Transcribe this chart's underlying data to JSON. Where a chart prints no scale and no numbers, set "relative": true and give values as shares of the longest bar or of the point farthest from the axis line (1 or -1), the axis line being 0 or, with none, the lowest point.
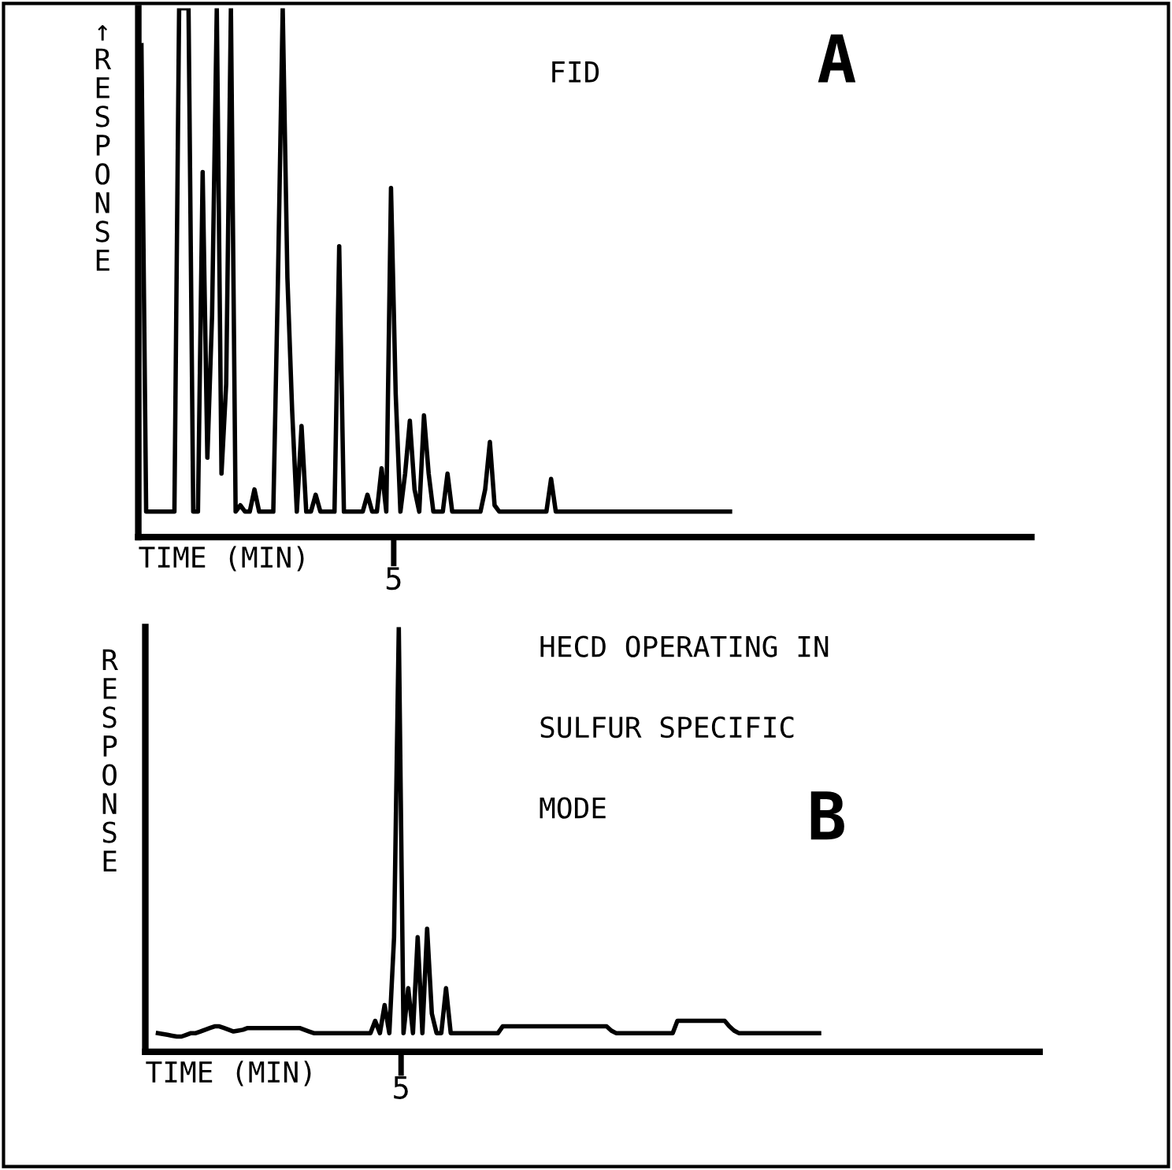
{
  "chart_data": [
    {
      "type": "line",
      "relative": true,
      "xlabel": "TIME (MIN)",
      "ylabel": "↑RESPONSE",
      "annotations": [
        "FID",
        "A",
        "5"
      ],
      "categories": [
        null,
        null,
        null,
        null,
        null,
        null,
        null,
        null,
        null,
        null,
        null,
        null,
        null,
        null,
        null,
        null,
        null,
        null,
        null,
        null,
        null,
        null,
        null,
        null,
        null,
        null,
        null,
        null,
        null,
        null,
        null,
        null,
        null,
        null,
        null,
        null,
        null,
        null,
        null,
        null,
        null,
        null,
        null,
        null,
        null,
        null,
        null,
        null,
        null,
        null,
        null,
        null,
        null,
        null,
        null,
        null,
        null,
        null,
        null,
        null,
        null,
        null,
        null,
        null,
        null,
        null,
        null,
        null,
        null,
        null,
        null,
        null,
        null,
        null,
        null,
        null,
        null,
        null,
        null,
        null,
        null,
        null,
        null,
        null,
        null,
        null,
        null,
        null,
        null,
        null,
        null,
        null,
        null,
        null,
        null,
        null,
        null,
        null,
        null,
        null,
        null,
        null,
        null,
        null,
        null,
        null,
        null,
        null,
        null,
        null,
        null,
        null,
        null,
        null,
        null,
        null,
        null,
        null,
        null,
        null,
        null,
        null,
        null,
        null,
        null,
        null
      ],
      "series": [
        {
          "color": "#000000",
          "values": [
            0.93,
            0.048,
            0.048,
            0.048,
            0.048,
            0.048,
            0.048,
            0.048,
            1,
            1,
            1,
            0.048,
            0.048,
            0.69,
            0.15,
            0.42,
            1,
            0.12,
            0.29,
            1,
            0.048,
            0.06,
            0.048,
            0.048,
            0.09,
            0.048,
            0.048,
            0.048,
            0.048,
            0.49,
            1,
            0.49,
            0.24,
            0.048,
            0.21,
            0.048,
            0.048,
            0.08,
            0.048,
            0.048,
            0.048,
            0.048,
            0.55,
            0.048,
            0.048,
            0.048,
            0.048,
            0.048,
            0.08,
            0.048,
            0.048,
            0.13,
            0.048,
            0.66,
            0.27,
            0.048,
            0.12,
            0.22,
            0.09,
            0.048,
            0.23,
            0.12,
            0.048,
            0.048,
            0.048,
            0.12,
            0.048,
            0.048,
            0.048,
            0.048,
            0.048,
            0.048,
            0.048,
            0.09,
            0.18,
            0.06,
            0.048,
            0.048,
            0.048,
            0.048,
            0.048,
            0.048,
            0.048,
            0.048,
            0.048,
            0.048,
            0.048,
            0.11,
            0.048,
            0.048,
            0.048,
            0.048,
            0.048,
            0.048,
            0.048,
            0.048,
            0.048,
            0.048,
            0.048,
            0.048,
            0.048,
            0.048,
            0.048,
            0.048,
            0.048,
            0.048,
            0.048,
            0.048,
            0.048,
            0.048,
            0.048,
            0.048,
            0.048,
            0.048,
            0.048,
            0.048,
            0.048,
            0.048,
            0.048,
            0.048,
            0.048,
            0.048,
            0.048,
            0.048,
            0.048,
            0.048
          ]
        }
      ]
    },
    {
      "type": "line",
      "relative": true,
      "xlabel": "TIME (MIN)",
      "ylabel": "RESPONSE",
      "annotations": [
        "HECD OPERATING IN",
        "SULFUR SPECIFIC",
        "MODE",
        "B",
        "5"
      ],
      "categories": [
        null,
        null,
        null,
        null,
        null,
        null,
        null,
        null,
        null,
        null,
        null,
        null,
        null,
        null,
        null,
        null,
        null,
        null,
        null,
        null,
        null,
        null,
        null,
        null,
        null,
        null,
        null,
        null,
        null,
        null,
        null,
        null,
        null,
        null,
        null,
        null,
        null,
        null,
        null,
        null,
        null,
        null,
        null,
        null,
        null,
        null,
        null,
        null,
        null,
        null,
        null,
        null,
        null,
        null,
        null,
        null,
        null,
        null,
        null,
        null,
        null,
        null,
        null,
        null,
        null,
        null,
        null,
        null,
        null,
        null,
        null,
        null,
        null,
        null,
        null,
        null,
        null,
        null,
        null,
        null,
        null,
        null,
        null,
        null,
        null,
        null,
        null,
        null,
        null,
        null,
        null,
        null,
        null,
        null,
        null,
        null,
        null,
        null,
        null,
        null,
        null,
        null,
        null,
        null,
        null,
        null,
        null,
        null,
        null,
        null,
        null,
        null,
        null,
        null,
        null,
        null,
        null,
        null,
        null,
        null,
        null,
        null,
        null,
        null,
        null,
        null,
        null,
        null,
        null,
        null,
        null,
        null,
        null,
        null,
        null,
        null,
        null,
        null,
        null,
        null,
        null
      ],
      "series": [
        {
          "color": "#000000",
          "values": [
            0.044,
            0.042,
            0.04,
            0.038,
            0.036,
            0.036,
            0.04,
            0.044,
            0.044,
            0.048,
            0.052,
            0.056,
            0.06,
            0.06,
            0.056,
            0.052,
            0.048,
            0.05,
            0.052,
            0.056,
            0.056,
            0.056,
            0.056,
            0.056,
            0.056,
            0.056,
            0.056,
            0.056,
            0.056,
            0.056,
            0.056,
            0.052,
            0.048,
            0.044,
            0.044,
            0.044,
            0.044,
            0.044,
            0.044,
            0.044,
            0.044,
            0.044,
            0.044,
            0.044,
            0.044,
            0.044,
            0.073,
            0.044,
            0.11,
            0.044,
            0.27,
            1,
            0.044,
            0.15,
            0.044,
            0.27,
            0.044,
            0.29,
            0.09,
            0.044,
            0.044,
            0.15,
            0.044,
            0.044,
            0.044,
            0.044,
            0.044,
            0.044,
            0.044,
            0.044,
            0.044,
            0.044,
            0.044,
            0.06,
            0.06,
            0.06,
            0.06,
            0.06,
            0.06,
            0.06,
            0.06,
            0.06,
            0.06,
            0.06,
            0.06,
            0.06,
            0.06,
            0.06,
            0.06,
            0.06,
            0.06,
            0.06,
            0.06,
            0.06,
            0.06,
            0.06,
            0.05,
            0.044,
            0.044,
            0.044,
            0.044,
            0.044,
            0.044,
            0.044,
            0.044,
            0.044,
            0.044,
            0.044,
            0.044,
            0.044,
            0.073,
            0.073,
            0.073,
            0.073,
            0.073,
            0.073,
            0.073,
            0.073,
            0.073,
            0.073,
            0.073,
            0.06,
            0.05,
            0.044,
            0.044,
            0.044,
            0.044,
            0.044,
            0.044,
            0.044,
            0.044,
            0.044,
            0.044,
            0.044,
            0.044,
            0.044,
            0.044,
            0.044,
            0.044,
            0.044,
            0.044
          ]
        }
      ]
    }
  ]
}
